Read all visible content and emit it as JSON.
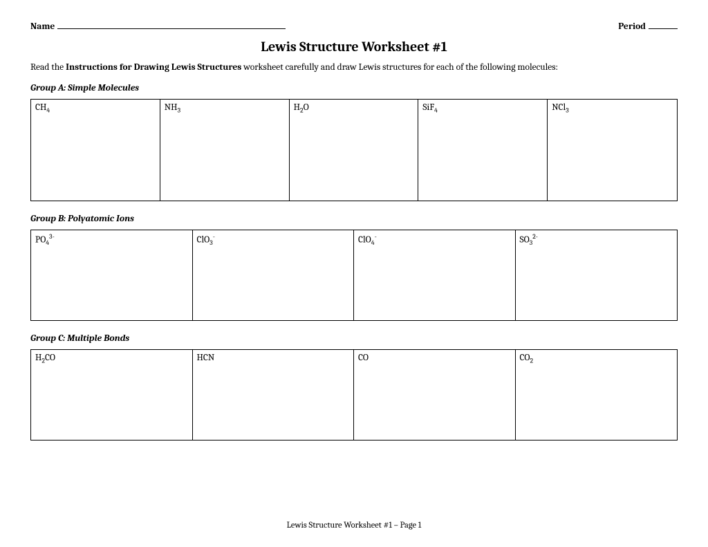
{
  "header": {
    "name_label": "Name",
    "period_label": "Period"
  },
  "title": "Lewis Structure Worksheet #1",
  "instructions": {
    "pre": "Read the ",
    "bold": "Instructions for Drawing Lewis Structures",
    "post": " worksheet carefully and draw Lewis structures for each of the following molecules:"
  },
  "groups": {
    "a": {
      "label": "Group A: Simple Molecules",
      "cells": [
        {
          "base": "CH",
          "sub": "4",
          "sup": ""
        },
        {
          "base": "NH",
          "sub": "3",
          "sup": ""
        },
        {
          "base": "H",
          "sub": "2",
          "post": "O",
          "sup": ""
        },
        {
          "base": "SiF",
          "sub": "4",
          "sup": ""
        },
        {
          "base": "NCl",
          "sub": "3",
          "sup": ""
        }
      ]
    },
    "b": {
      "label": "Group B: Polyatomic Ions",
      "cells": [
        {
          "base": "PO",
          "sub": "4",
          "sup": "3-"
        },
        {
          "base": "ClO",
          "sub": "3",
          "sup": "-"
        },
        {
          "base": "ClO",
          "sub": "4",
          "sup": "-"
        },
        {
          "base": "SO",
          "sub": "3",
          "sup": "2-"
        }
      ]
    },
    "c": {
      "label": "Group C: Multiple Bonds",
      "cells": [
        {
          "base": "H",
          "sub": "2",
          "post": "CO",
          "sup": ""
        },
        {
          "base": "HCN",
          "sub": "",
          "sup": ""
        },
        {
          "base": "CO",
          "sub": "",
          "sup": ""
        },
        {
          "base": "CO",
          "sub": "2",
          "sup": ""
        }
      ]
    }
  },
  "footer": "Lewis Structure Worksheet #1 – Page 1"
}
